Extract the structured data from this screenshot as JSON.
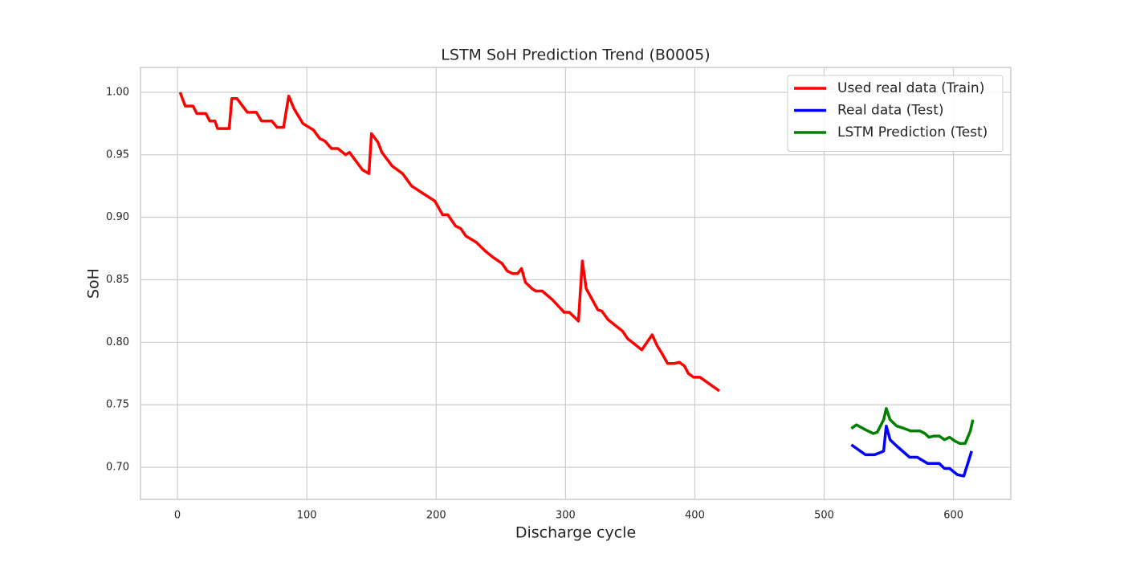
{
  "chart_data": {
    "type": "line",
    "title": "LSTM SoH Prediction Trend (B0005)",
    "x_label": "Discharge cycle",
    "y_label": "SoH",
    "xlim": [
      -28.6,
      644.3
    ],
    "ylim": [
      0.6743,
      1.0199
    ],
    "xticks": [
      0,
      100,
      200,
      300,
      400,
      500,
      600
    ],
    "yticks": [
      {
        "value": 0.7,
        "label": "0.70"
      },
      {
        "value": 0.75,
        "label": "0.75"
      },
      {
        "value": 0.8,
        "label": "0.80"
      },
      {
        "value": 0.85,
        "label": "0.85"
      },
      {
        "value": 0.9,
        "label": "0.90"
      },
      {
        "value": 0.95,
        "label": "0.95"
      },
      {
        "value": 1.0,
        "label": "1.00"
      }
    ],
    "grid": true,
    "legend": "upper right",
    "series": [
      {
        "name": "Used real data (Train)",
        "color": "#ff0000",
        "x": [
          2,
          6,
          12,
          15,
          22,
          25,
          29,
          31,
          40,
          42,
          46,
          54,
          61,
          65,
          73,
          77,
          82,
          86,
          90,
          97,
          105,
          110,
          114,
          119,
          124,
          130,
          133,
          143,
          148,
          150,
          155,
          158,
          166,
          174,
          181,
          190,
          199,
          205,
          209,
          215,
          219,
          223,
          231,
          238,
          244,
          251,
          255,
          259,
          263,
          266,
          269,
          274,
          277,
          282,
          290,
          299,
          303,
          310,
          313,
          316,
          325,
          328,
          333,
          344,
          348,
          359,
          367,
          371,
          374,
          379,
          384,
          388,
          392,
          395,
          399,
          404,
          419
        ],
        "values": [
          1.0,
          0.989,
          0.989,
          0.983,
          0.983,
          0.977,
          0.977,
          0.971,
          0.971,
          0.995,
          0.995,
          0.984,
          0.984,
          0.977,
          0.977,
          0.972,
          0.972,
          0.997,
          0.987,
          0.975,
          0.97,
          0.963,
          0.961,
          0.955,
          0.955,
          0.95,
          0.952,
          0.938,
          0.935,
          0.967,
          0.96,
          0.952,
          0.941,
          0.935,
          0.925,
          0.919,
          0.913,
          0.902,
          0.902,
          0.893,
          0.891,
          0.885,
          0.88,
          0.873,
          0.868,
          0.863,
          0.857,
          0.855,
          0.855,
          0.859,
          0.848,
          0.843,
          0.841,
          0.841,
          0.834,
          0.824,
          0.824,
          0.817,
          0.865,
          0.843,
          0.826,
          0.825,
          0.818,
          0.809,
          0.803,
          0.794,
          0.806,
          0.797,
          0.792,
          0.783,
          0.783,
          0.784,
          0.781,
          0.775,
          0.772,
          0.772,
          0.761
        ]
      },
      {
        "name": "Real data (Test)",
        "color": "#0000ff",
        "x": [
          521,
          532,
          539,
          544,
          546,
          548,
          551,
          556,
          566,
          572,
          580,
          589,
          593,
          597,
          603,
          608,
          611,
          614
        ],
        "values": [
          0.718,
          0.71,
          0.71,
          0.712,
          0.713,
          0.733,
          0.722,
          0.717,
          0.708,
          0.708,
          0.703,
          0.703,
          0.699,
          0.699,
          0.694,
          0.693,
          0.703,
          0.713
        ]
      },
      {
        "name": "LSTM Prediction (Test)",
        "color": "#008000",
        "x": [
          521,
          525,
          532,
          538,
          541,
          546,
          548,
          551,
          556,
          562,
          567,
          574,
          578,
          581,
          585,
          589,
          593,
          597,
          601,
          605,
          609,
          613,
          615
        ],
        "values": [
          0.731,
          0.734,
          0.73,
          0.727,
          0.728,
          0.738,
          0.747,
          0.738,
          0.733,
          0.731,
          0.729,
          0.729,
          0.727,
          0.724,
          0.725,
          0.725,
          0.722,
          0.724,
          0.721,
          0.719,
          0.719,
          0.729,
          0.738
        ]
      }
    ]
  }
}
